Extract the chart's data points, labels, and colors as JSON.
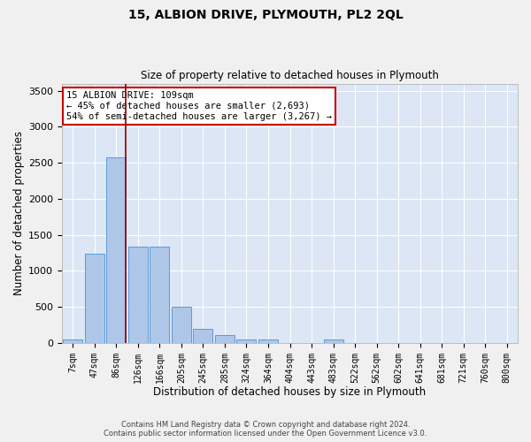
{
  "title": "15, ALBION DRIVE, PLYMOUTH, PL2 2QL",
  "subtitle": "Size of property relative to detached houses in Plymouth",
  "xlabel": "Distribution of detached houses by size in Plymouth",
  "ylabel": "Number of detached properties",
  "bar_labels": [
    "7sqm",
    "47sqm",
    "86sqm",
    "126sqm",
    "166sqm",
    "205sqm",
    "245sqm",
    "285sqm",
    "324sqm",
    "364sqm",
    "404sqm",
    "443sqm",
    "483sqm",
    "522sqm",
    "562sqm",
    "602sqm",
    "641sqm",
    "681sqm",
    "721sqm",
    "760sqm",
    "800sqm"
  ],
  "bar_values": [
    50,
    1240,
    2580,
    1340,
    1340,
    500,
    195,
    105,
    50,
    50,
    0,
    0,
    50,
    0,
    0,
    0,
    0,
    0,
    0,
    0,
    0
  ],
  "bar_color": "#aec6e8",
  "bar_edge_color": "#5b9bd5",
  "background_color": "#dce6f5",
  "fig_background_color": "#f0f0f0",
  "grid_color": "#ffffff",
  "vline_color": "#8b0000",
  "annotation_title": "15 ALBION DRIVE: 109sqm",
  "annotation_line1": "← 45% of detached houses are smaller (2,693)",
  "annotation_line2": "54% of semi-detached houses are larger (3,267) →",
  "annotation_box_color": "#ffffff",
  "annotation_box_edge": "#cc0000",
  "ylim": [
    0,
    3600
  ],
  "yticks": [
    0,
    500,
    1000,
    1500,
    2000,
    2500,
    3000,
    3500
  ],
  "footer_line1": "Contains HM Land Registry data © Crown copyright and database right 2024.",
  "footer_line2": "Contains public sector information licensed under the Open Government Licence v3.0."
}
